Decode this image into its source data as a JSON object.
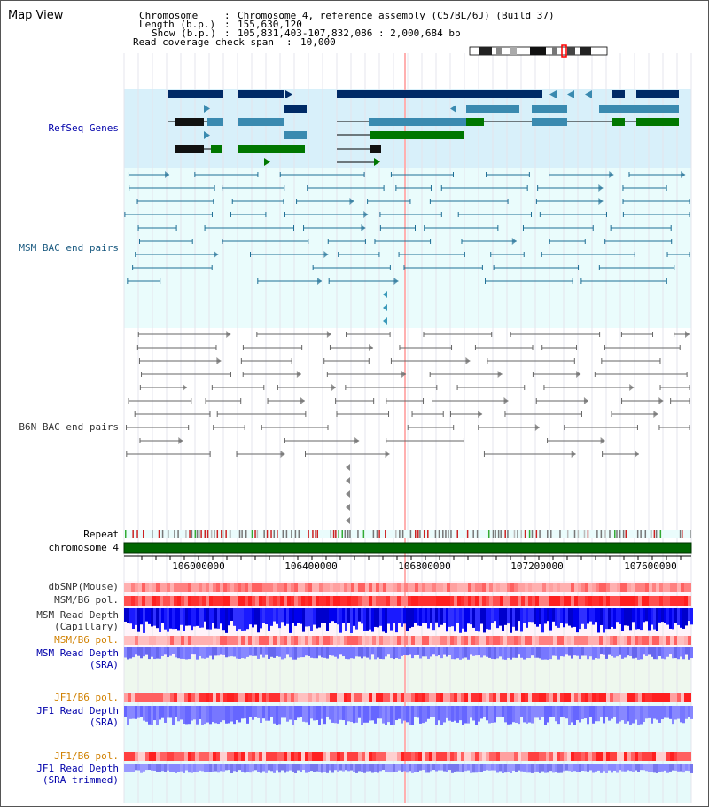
{
  "title": "Map View",
  "info": {
    "chromosome_key": "Chromosome",
    "chromosome_val": "Chromosome 4, reference assembly (C57BL/6J) (Build 37)",
    "length_key": "Length (b.p.)",
    "length_val": "155,630,120",
    "show_key": "Show (b.p.)",
    "show_val": "105,831,403-107,832,086 : 2,000,684 bp",
    "span_key": "Read coverage check span",
    "span_val": "10,000"
  },
  "tracks": {
    "refseq": "RefSeq Genes",
    "msm_bac": "MSM BAC end pairs",
    "b6n_bac": "B6N BAC end pairs",
    "repeat": "Repeat",
    "chromosome": "chromosome 4",
    "dbsnp": "dbSNP(Mouse)",
    "msm_pol1": "MSM/B6 pol.",
    "msm_depth_cap_1": "MSM Read Depth",
    "msm_depth_cap_2": "(Capillary)",
    "msm_pol2": "MSM/B6 pol.",
    "msm_depth_sra_1": "MSM Read Depth",
    "msm_depth_sra_2": "(SRA)",
    "jf1_pol1": "JF1/B6 pol.",
    "jf1_depth_sra_1": "JF1 Read Depth",
    "jf1_depth_sra_2": "(SRA)",
    "jf1_pol2": "JF1/B6 pol.",
    "jf1_depth_trim_1": "JF1 Read Depth",
    "jf1_depth_trim_2": "(SRA trimmed)"
  },
  "axis_ticks": [
    "106000000",
    "106400000",
    "106800000",
    "107200000",
    "107600000"
  ],
  "colors": {
    "refseq_bg": "#d8f0fa",
    "bac_bg": "#eafcfc",
    "gene_dark": "#002a66",
    "gene_mid": "#3a8ab0",
    "gene_green": "#007700",
    "snp_red": "#ff5050",
    "depth_blue": "#0000ee",
    "depth_light": "#7777ff"
  }
}
